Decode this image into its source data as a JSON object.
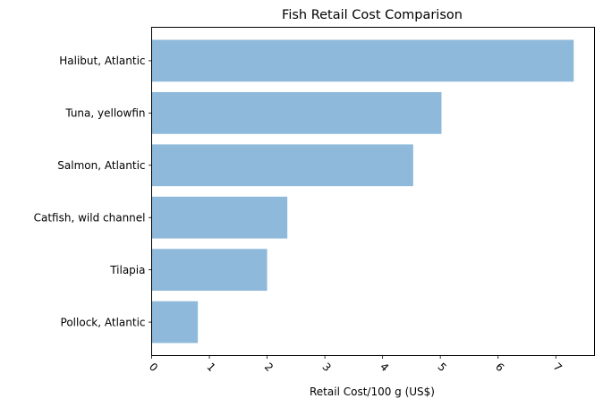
{
  "chart_data": {
    "type": "bar",
    "orientation": "horizontal",
    "title": "Fish Retail Cost Comparison",
    "xlabel": "Retail Cost/100 g (US$)",
    "ylabel": "",
    "categories": [
      "Pollock, Atlantic",
      "Tilapia",
      "Catfish, wild channel",
      "Salmon, Atlantic",
      "Tuna, yellowfin",
      "Halibut, Atlantic"
    ],
    "values": [
      0.8,
      2.0,
      2.35,
      4.53,
      5.02,
      7.31
    ],
    "xlim": [
      0,
      7.67
    ],
    "xticks": [
      "0",
      "1",
      "2",
      "3",
      "4",
      "5",
      "6",
      "7"
    ],
    "xtick_rotation": 45,
    "grid": false,
    "bar_color": "#8fb9da"
  }
}
